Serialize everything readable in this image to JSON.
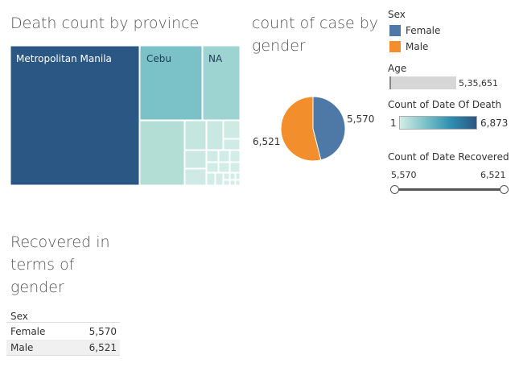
{
  "titles": {
    "treemap": "Death count by province",
    "pie_line1": "count of case by",
    "pie_line2": "gender",
    "table_line1": "Recovered in",
    "table_line2": "terms of",
    "table_line3": "gender"
  },
  "legends": {
    "sex_title": "Sex",
    "sex_items": [
      {
        "label": "Female",
        "color": "#4e79a7"
      },
      {
        "label": "Male",
        "color": "#f28e2b"
      }
    ],
    "age_title": "Age",
    "age_max": "5,35,651",
    "death_title": "Count of Date Of Death",
    "death_min": "1",
    "death_max": "6,873",
    "recovered_title": "Count of Date Recovered",
    "recovered_min": "5,570",
    "recovered_max": "6,521"
  },
  "chart_data": [
    {
      "type": "treemap",
      "title": "Death count by province",
      "labels": [
        "Metropolitan Manila",
        "Cebu",
        "NA"
      ],
      "color_scale": {
        "min": 1,
        "max": 6873,
        "low_color": "#d3ece6",
        "high_color": "#2a5783"
      }
    },
    {
      "type": "pie",
      "title": "count of case by gender",
      "categories": [
        "Female",
        "Male"
      ],
      "values": [
        5570,
        6521
      ],
      "value_labels": [
        "5,570",
        "6,521"
      ],
      "colors": [
        "#4e79a7",
        "#f28e2b"
      ]
    },
    {
      "type": "table",
      "title": "Recovered in terms of gender",
      "columns": [
        "Sex",
        ""
      ],
      "rows": [
        {
          "label": "Female",
          "value": "5,570"
        },
        {
          "label": "Male",
          "value": "6,521"
        }
      ]
    }
  ]
}
